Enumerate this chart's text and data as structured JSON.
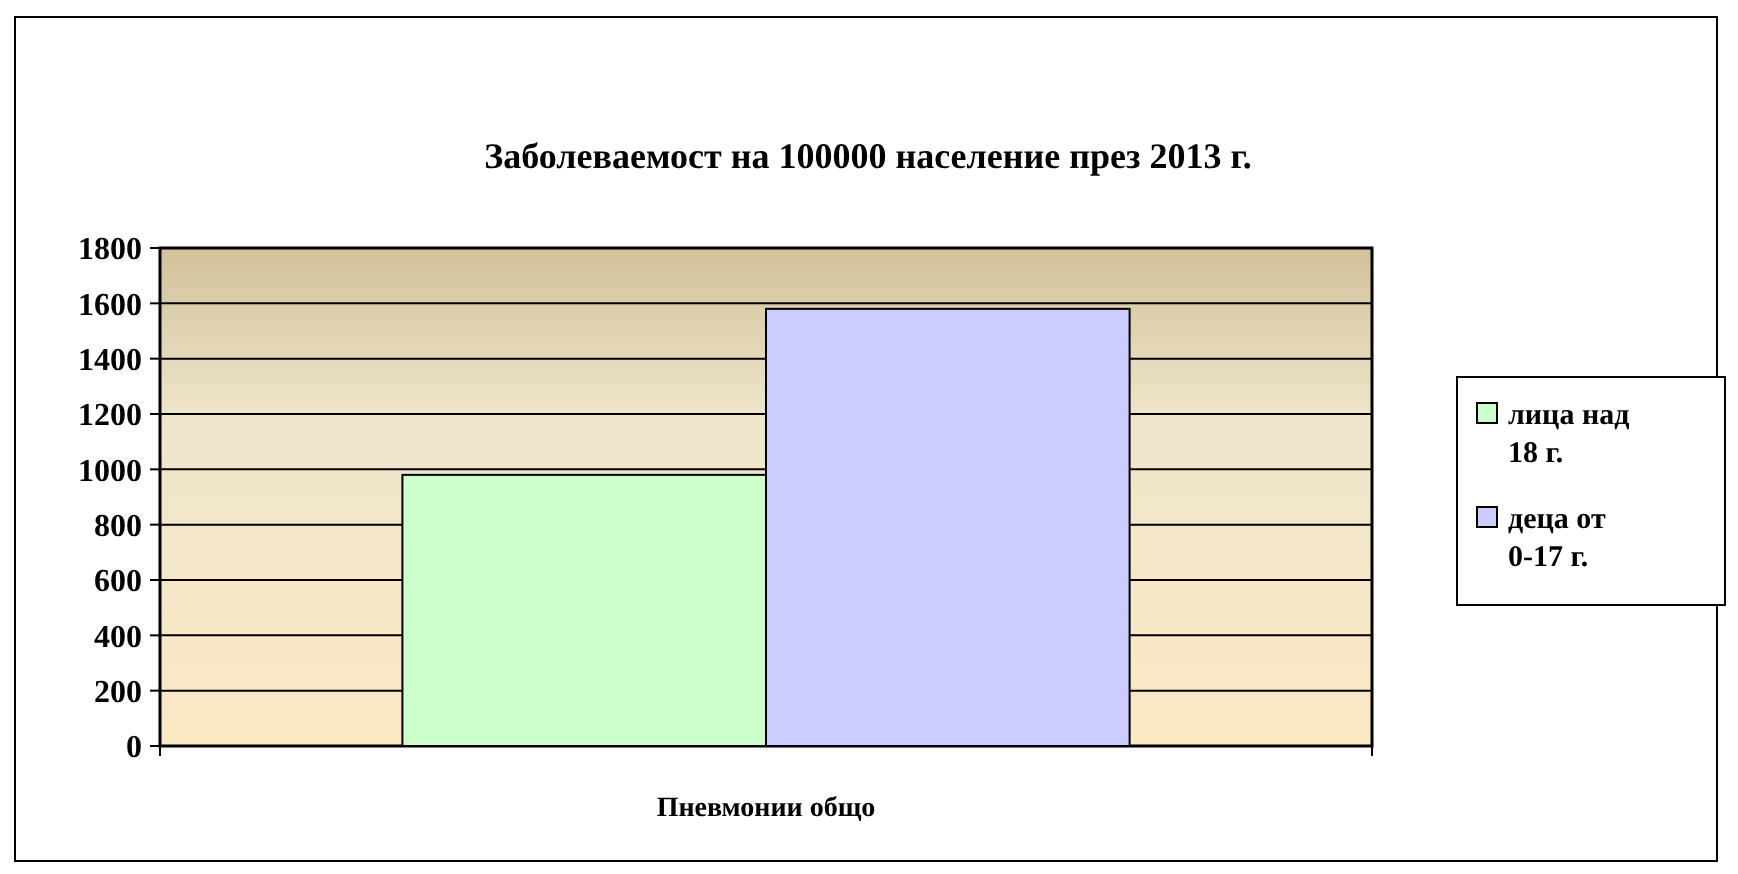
{
  "chart_data": {
    "type": "bar",
    "title": "Заболеваемост на 100000 население през 2013 г.",
    "categories": [
      "Пневмонии общо"
    ],
    "series": [
      {
        "name": "лица над 18 г.",
        "color": "#ccffcc",
        "values": [
          980
        ]
      },
      {
        "name": "деца от 0-17 г.",
        "color": "#ccccff",
        "values": [
          1580
        ]
      }
    ],
    "ylim": [
      0,
      1800
    ],
    "yticks": [
      0,
      200,
      400,
      600,
      800,
      1000,
      1200,
      1400,
      1600,
      1800
    ],
    "grid": "y",
    "legend": "right"
  }
}
